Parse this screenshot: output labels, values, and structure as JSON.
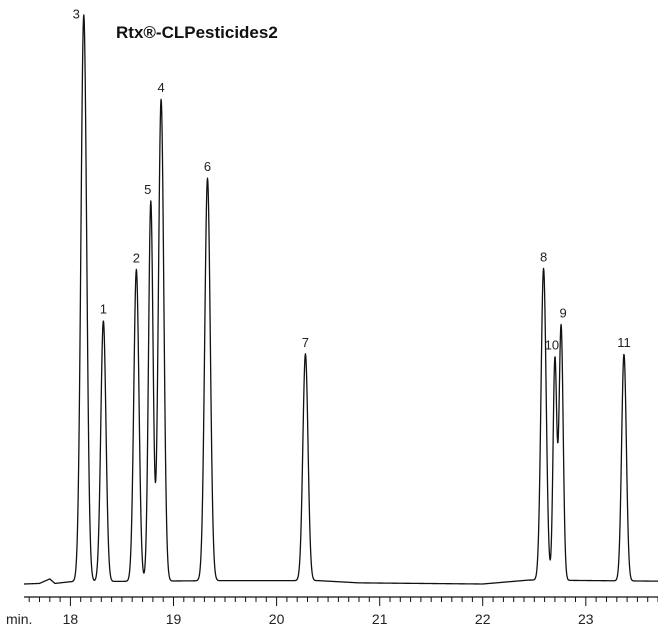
{
  "chart_data": {
    "type": "line",
    "title": "Rtx®-CLPesticides2",
    "xlabel": "min.",
    "ylabel": "",
    "xlim": [
      17.55,
      23.7
    ],
    "ylim": [
      0,
      100
    ],
    "x_ticks": [
      "18",
      "19",
      "20",
      "21",
      "22",
      "23"
    ],
    "minor_tick_step": 0.1,
    "grid": false,
    "line_color": "#111111",
    "series": [
      {
        "peaks": [
          {
            "label": "1",
            "rt": 18.32,
            "height": 46.0,
            "width": 0.025
          },
          {
            "label": "2",
            "rt": 18.64,
            "height": 55.0,
            "width": 0.025
          },
          {
            "label": "3",
            "rt": 18.13,
            "height": 100.0,
            "width": 0.028
          },
          {
            "label": "4",
            "rt": 18.88,
            "height": 85.0,
            "width": 0.026
          },
          {
            "label": "5",
            "rt": 18.78,
            "height": 67.0,
            "width": 0.022
          },
          {
            "label": "6",
            "rt": 19.33,
            "height": 71.0,
            "width": 0.027
          },
          {
            "label": "7",
            "rt": 20.28,
            "height": 40.0,
            "width": 0.025
          },
          {
            "label": "8",
            "rt": 22.59,
            "height": 55.0,
            "width": 0.025
          },
          {
            "label": "9",
            "rt": 22.76,
            "height": 45.0,
            "width": 0.02
          },
          {
            "label": "10",
            "rt": 22.7,
            "height": 39.0,
            "width": 0.018
          },
          {
            "label": "11",
            "rt": 23.37,
            "height": 40.0,
            "width": 0.023
          }
        ],
        "baseline": [
          [
            17.55,
            0.0
          ],
          [
            17.7,
            0.1
          ],
          [
            17.8,
            0.9
          ],
          [
            17.85,
            0.1
          ],
          [
            18.0,
            0.4
          ],
          [
            19.5,
            0.6
          ],
          [
            20.4,
            0.6
          ],
          [
            20.8,
            0.2
          ],
          [
            22.0,
            0.0
          ],
          [
            22.45,
            0.7
          ],
          [
            23.7,
            0.5
          ]
        ]
      }
    ]
  }
}
